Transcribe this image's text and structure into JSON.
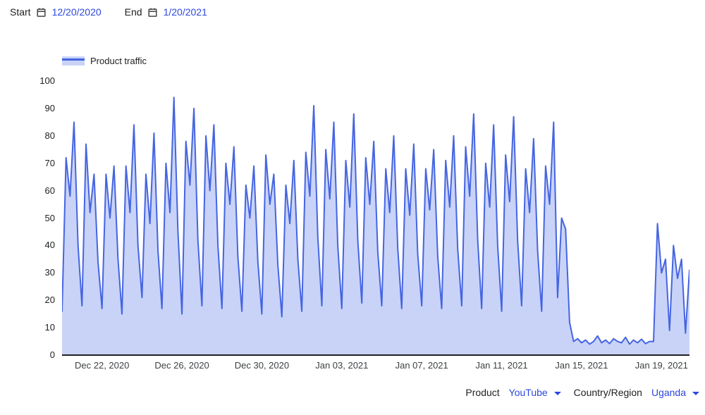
{
  "date_range": {
    "start_label": "Start",
    "start_value": "12/20/2020",
    "end_label": "End",
    "end_value": "1/20/2021"
  },
  "legend": {
    "label": "Product traffic"
  },
  "controls": {
    "product_label": "Product",
    "product_value": "YouTube",
    "region_label": "Country/Region",
    "region_value": "Uganda"
  },
  "colors": {
    "line": "#4565e2",
    "fill": "#c9d3f7",
    "link": "#2c48dd",
    "text": "#202124",
    "axis": "#202124",
    "muted": "#3c4043"
  },
  "chart_data": {
    "type": "area",
    "title": "Product traffic",
    "series_name": "Product traffic",
    "xlabel": "",
    "ylabel": "",
    "ylim": [
      0,
      100
    ],
    "y_ticks": [
      0,
      10,
      20,
      30,
      40,
      50,
      60,
      70,
      80,
      90,
      100
    ],
    "x_range": [
      "Dec 20, 2020",
      "Jan 20, 2021"
    ],
    "x_tick_labels": [
      "Dec 22, 2020",
      "Dec 26, 2020",
      "Dec 30, 2020",
      "Jan 03, 2021",
      "Jan 07, 2021",
      "Jan 11, 2021",
      "Jan 15, 2021",
      "Jan 19, 2021"
    ],
    "x_tick_indices": [
      10,
      30,
      50,
      70,
      90,
      110,
      130,
      150
    ],
    "grid": false,
    "legend_position": "top-left",
    "samples_per_day": 5,
    "values": [
      16,
      72,
      58,
      85,
      40,
      18,
      77,
      52,
      66,
      34,
      17,
      66,
      50,
      69,
      35,
      15,
      69,
      52,
      84,
      40,
      21,
      66,
      48,
      81,
      38,
      17,
      70,
      52,
      94,
      45,
      15,
      78,
      62,
      90,
      42,
      18,
      80,
      60,
      84,
      40,
      17,
      70,
      55,
      76,
      36,
      16,
      62,
      50,
      69,
      34,
      15,
      73,
      55,
      66,
      33,
      14,
      62,
      48,
      71,
      35,
      16,
      74,
      58,
      91,
      43,
      18,
      75,
      57,
      85,
      40,
      17,
      71,
      54,
      88,
      42,
      19,
      72,
      55,
      78,
      38,
      18,
      68,
      52,
      80,
      39,
      17,
      68,
      51,
      77,
      37,
      18,
      68,
      53,
      75,
      36,
      17,
      71,
      54,
      80,
      39,
      18,
      76,
      58,
      88,
      42,
      17,
      70,
      54,
      84,
      40,
      16,
      73,
      56,
      87,
      42,
      18,
      68,
      52,
      79,
      38,
      16,
      69,
      55,
      85,
      21,
      50,
      46,
      12,
      5,
      6,
      4.5,
      5.5,
      4,
      5,
      7,
      4.5,
      5.5,
      4.2,
      6,
      5,
      4.5,
      6.5,
      4,
      5.5,
      4.5,
      5.8,
      4.2,
      5,
      5,
      48,
      30,
      35,
      9,
      40,
      28,
      35,
      8,
      31
    ]
  }
}
